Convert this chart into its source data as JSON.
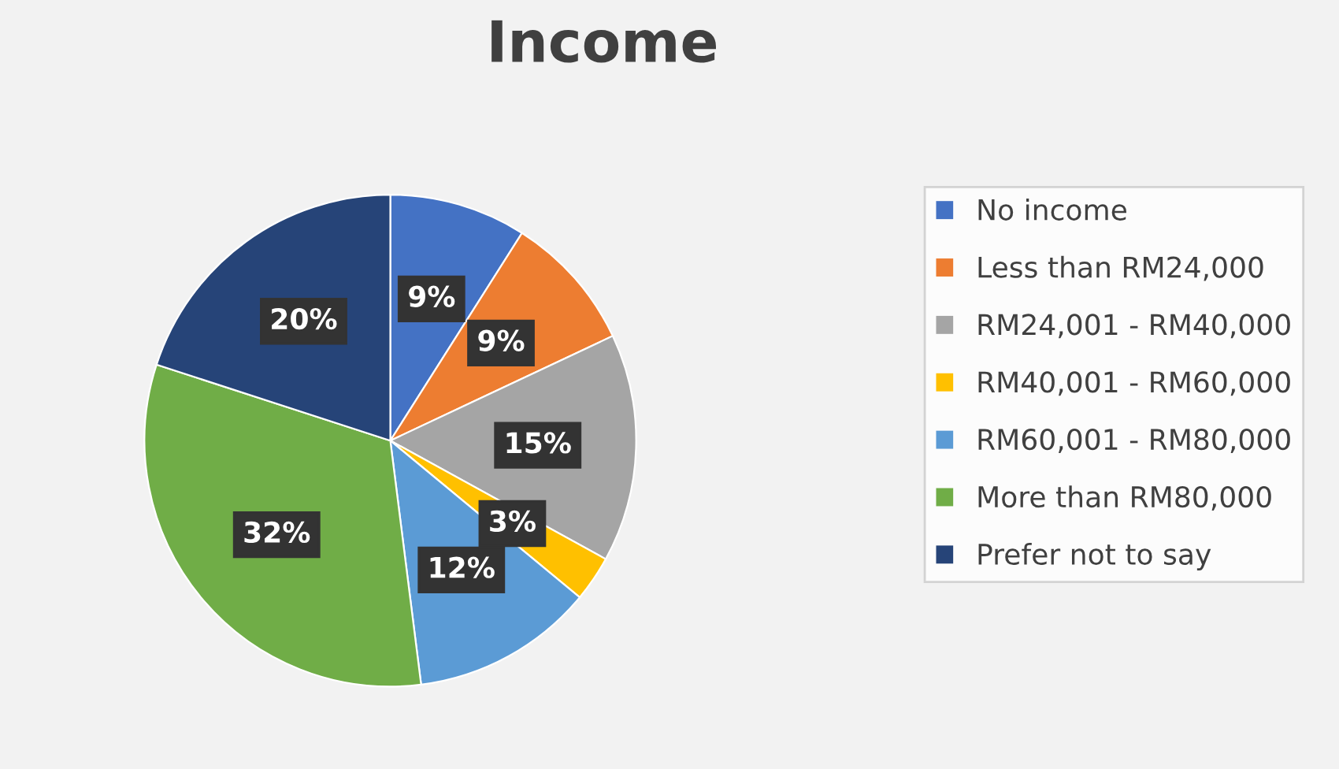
{
  "chart_data": {
    "type": "pie",
    "title": "Income",
    "categories": [
      "No income",
      "Less than RM24,000",
      "RM24,001 - RM40,000",
      "RM40,001 - RM60,000",
      "RM60,001 - RM80,000",
      "More than RM80,000",
      "Prefer not to say"
    ],
    "values": [
      9,
      9,
      15,
      3,
      12,
      32,
      20
    ],
    "colors": [
      "#4472c4",
      "#ed7d31",
      "#a5a5a5",
      "#ffc000",
      "#5b9bd5",
      "#70ad47",
      "#264478"
    ],
    "value_labels": [
      "9%",
      "9%",
      "15%",
      "3%",
      "12%",
      "32%",
      "20%"
    ],
    "legend": "right"
  }
}
